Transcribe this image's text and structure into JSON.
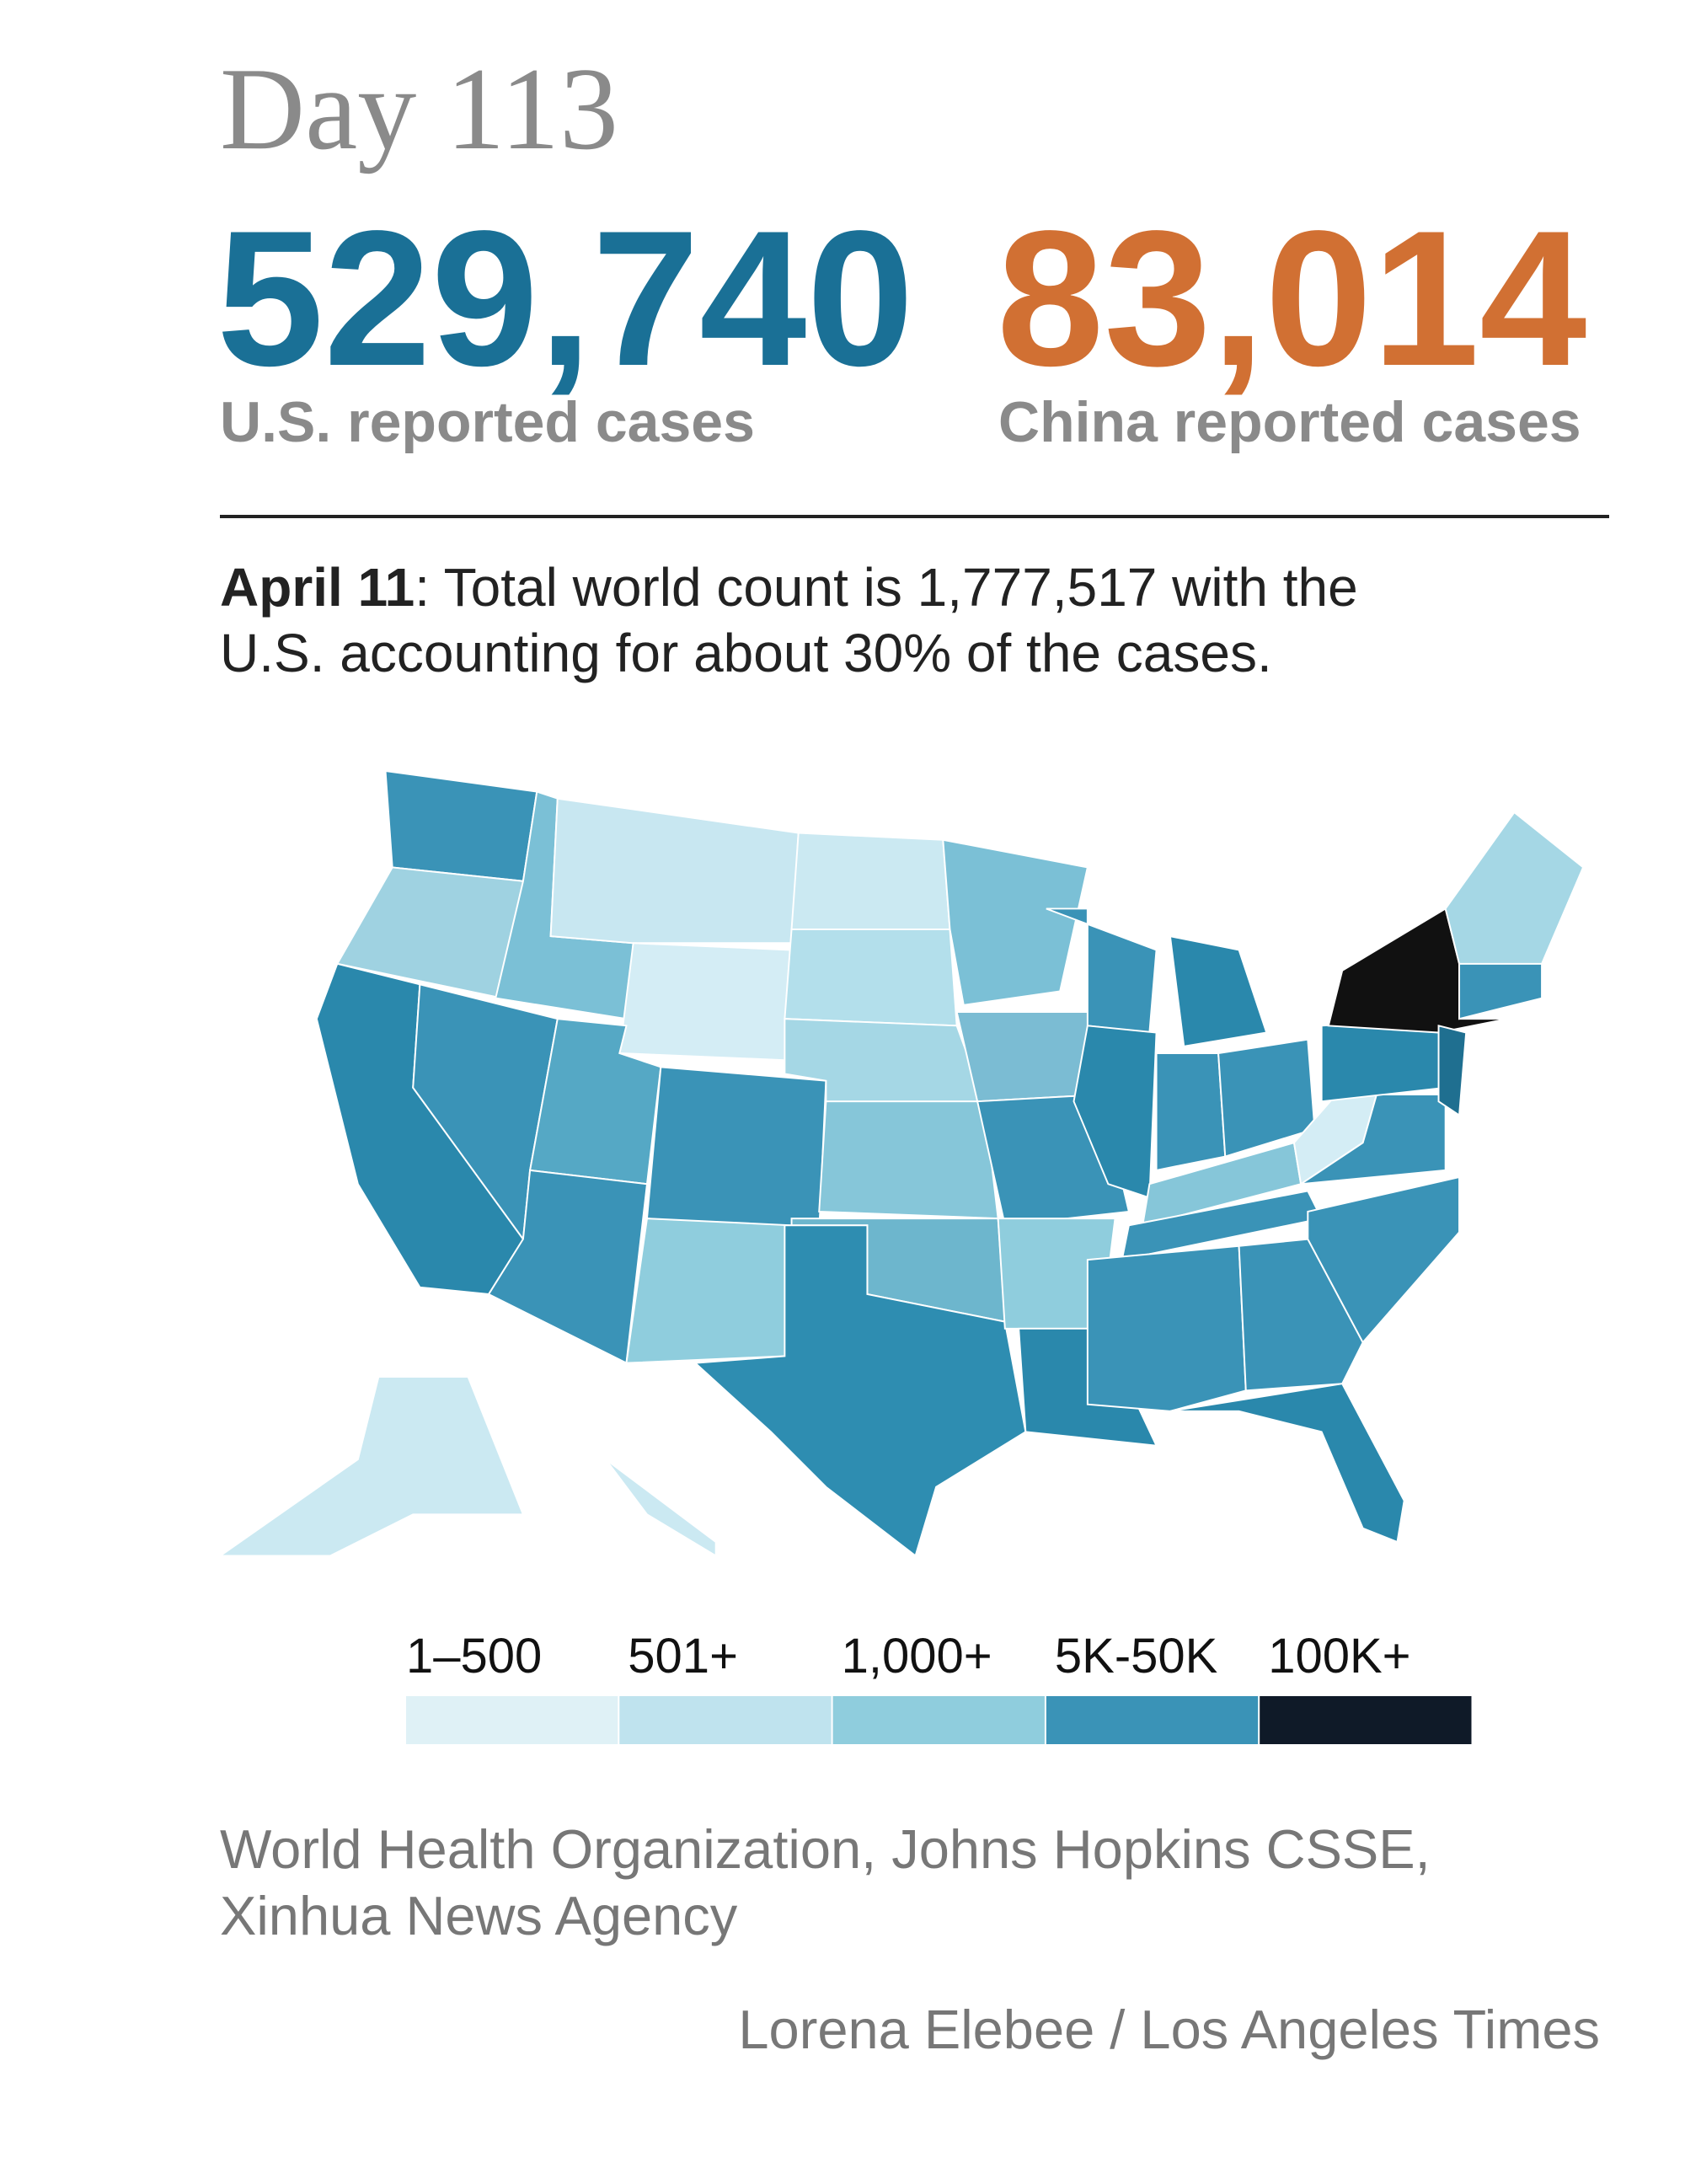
{
  "header": {
    "title": "Day 113",
    "us": {
      "count": "529,740",
      "label": "U.S. reported cases"
    },
    "china": {
      "count": "83,014",
      "label": "China reported cases"
    }
  },
  "note": {
    "date": "April 11",
    "lines": [
      ": Total world count is 1,777,517 with the",
      "U.S. accounting for about 30% of the cases."
    ]
  },
  "legend": [
    {
      "label": "1–500",
      "color": "#dff1f6"
    },
    {
      "label": "501+",
      "color": "#bfe3ee"
    },
    {
      "label": "1,000+",
      "color": "#8fcddd"
    },
    {
      "label": "5K-50K",
      "color": "#3a93b7"
    },
    {
      "label": "100K+",
      "color": "#0f1a28"
    }
  ],
  "source": {
    "lines": [
      "World Health Organization, Johns Hopkins CSSE,",
      "Xinhua News Agency"
    ]
  },
  "credit": "Lorena Elebee / Los Angeles Times"
}
